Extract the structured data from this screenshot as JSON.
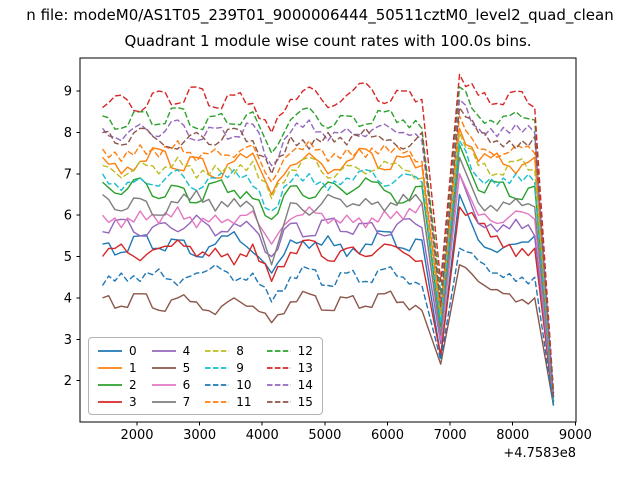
{
  "figure": {
    "suptitle": "n file: modeM0/AS1T05_239T01_9000006444_50511cztM0_level2_quad_clean",
    "title": "Quadrant 1 module wise count rates with 100.0s bins.",
    "offset_text": "+4.7583e8",
    "background": "#ffffff"
  },
  "chart_data": {
    "type": "line",
    "title": "Quadrant 1 module wise count rates with 100.0s bins.",
    "suptitle_visible": "n file: modeM0/AS1T05_239T01_9000006444_50511cztM0_level2_quad_clean",
    "xlabel": "",
    "ylabel": "",
    "x_offset_label": "+4.7583e8",
    "xlim": [
      1090,
      9010
    ],
    "ylim": [
      1.0,
      9.8
    ],
    "x_ticks": [
      2000,
      3000,
      4000,
      5000,
      6000,
      7000,
      8000,
      9000
    ],
    "y_ticks": [
      2,
      3,
      4,
      5,
      6,
      7,
      8,
      9
    ],
    "grid": false,
    "legend": {
      "position": "lower left",
      "ncol": 4
    },
    "notes": "16 CZT module count-rate light curves; deep dip near x=6850, spike near x=7150, all series crash to ~1.5 at x=8650; x values are seconds with offset +4.7583e8",
    "x": [
      1450,
      1750,
      2050,
      2350,
      2650,
      2950,
      3250,
      3550,
      3850,
      4150,
      4450,
      4750,
      5050,
      5350,
      5650,
      5950,
      6250,
      6550,
      6850,
      7150,
      7450,
      7750,
      8050,
      8350,
      8650
    ],
    "series": [
      {
        "name": "0",
        "color": "#1f77b4",
        "dash": "solid",
        "values": [
          5.3,
          5.1,
          5.5,
          5.2,
          5.4,
          5.0,
          5.3,
          5.6,
          5.1,
          4.6,
          5.4,
          5.2,
          5.5,
          5.0,
          5.3,
          5.6,
          5.2,
          5.4,
          2.6,
          6.5,
          5.4,
          5.1,
          5.3,
          5.5,
          1.5
        ]
      },
      {
        "name": "1",
        "color": "#ff7f0e",
        "dash": "solid",
        "values": [
          7.4,
          7.0,
          7.3,
          7.6,
          7.1,
          7.4,
          6.9,
          7.3,
          7.5,
          6.5,
          7.2,
          7.5,
          7.0,
          7.3,
          7.6,
          7.1,
          7.4,
          7.2,
          3.6,
          8.1,
          7.3,
          7.5,
          7.0,
          7.4,
          1.6
        ]
      },
      {
        "name": "2",
        "color": "#2ca02c",
        "dash": "solid",
        "values": [
          6.8,
          6.5,
          6.9,
          6.4,
          6.7,
          6.3,
          6.8,
          6.6,
          6.4,
          5.9,
          6.7,
          6.4,
          6.8,
          6.5,
          6.9,
          6.6,
          6.3,
          6.7,
          3.3,
          7.7,
          6.6,
          6.8,
          6.4,
          6.7,
          1.5
        ]
      },
      {
        "name": "3",
        "color": "#d62728",
        "dash": "solid",
        "values": [
          5.0,
          5.3,
          4.9,
          5.2,
          5.4,
          5.0,
          5.2,
          4.8,
          5.3,
          4.4,
          5.1,
          5.4,
          4.9,
          5.2,
          5.0,
          5.3,
          5.1,
          4.9,
          2.6,
          6.2,
          5.8,
          5.5,
          5.0,
          5.2,
          1.4
        ]
      },
      {
        "name": "4",
        "color": "#9467bd",
        "dash": "solid",
        "values": [
          5.6,
          5.9,
          5.5,
          5.8,
          5.6,
          6.0,
          5.5,
          5.8,
          5.7,
          5.0,
          5.8,
          5.5,
          5.9,
          5.6,
          5.8,
          5.5,
          5.9,
          5.7,
          2.9,
          7.0,
          5.8,
          5.6,
          5.9,
          5.5,
          1.5
        ]
      },
      {
        "name": "5",
        "color": "#8c564b",
        "dash": "solid",
        "values": [
          4.0,
          3.8,
          4.1,
          3.7,
          4.0,
          3.9,
          3.6,
          4.0,
          3.8,
          3.4,
          3.9,
          4.1,
          3.7,
          4.0,
          3.8,
          4.1,
          3.9,
          3.7,
          2.4,
          4.8,
          4.4,
          4.2,
          3.9,
          4.0,
          1.4
        ]
      },
      {
        "name": "6",
        "color": "#e377c2",
        "dash": "solid",
        "values": [
          6.0,
          5.7,
          6.1,
          5.8,
          6.2,
          5.7,
          6.0,
          5.8,
          6.1,
          5.3,
          5.9,
          6.2,
          5.8,
          6.0,
          5.7,
          6.1,
          5.9,
          6.3,
          3.0,
          7.0,
          6.0,
          5.8,
          6.1,
          5.9,
          1.5
        ]
      },
      {
        "name": "7",
        "color": "#7f7f7f",
        "dash": "solid",
        "values": [
          6.5,
          6.1,
          6.4,
          6.0,
          6.3,
          6.6,
          6.1,
          6.4,
          6.2,
          4.8,
          6.3,
          6.0,
          6.5,
          6.2,
          6.4,
          6.1,
          6.5,
          6.3,
          3.1,
          7.4,
          6.3,
          6.1,
          6.4,
          6.2,
          1.5
        ]
      },
      {
        "name": "8",
        "color": "#bcbd22",
        "dash": "dashed",
        "values": [
          7.2,
          6.9,
          7.3,
          7.0,
          7.4,
          6.9,
          7.2,
          7.0,
          7.3,
          6.4,
          7.1,
          7.4,
          6.9,
          7.2,
          7.0,
          7.3,
          7.1,
          6.9,
          3.5,
          8.0,
          7.2,
          7.0,
          7.3,
          7.1,
          1.6
        ]
      },
      {
        "name": "9",
        "color": "#17becf",
        "dash": "dashed",
        "values": [
          7.0,
          6.6,
          6.9,
          6.7,
          7.1,
          6.6,
          6.9,
          7.1,
          6.7,
          6.1,
          6.8,
          7.0,
          6.6,
          6.9,
          7.1,
          6.7,
          7.0,
          6.8,
          3.4,
          7.8,
          6.9,
          6.7,
          7.0,
          6.8,
          1.5
        ]
      },
      {
        "name": "10",
        "color": "#1f77b4",
        "dash": "dashed",
        "values": [
          4.3,
          4.6,
          4.4,
          4.7,
          4.3,
          4.6,
          4.8,
          4.4,
          4.6,
          3.9,
          4.5,
          4.7,
          4.3,
          4.6,
          4.4,
          4.7,
          4.5,
          4.3,
          2.5,
          5.2,
          4.9,
          4.6,
          4.4,
          4.5,
          1.4
        ]
      },
      {
        "name": "11",
        "color": "#ff7f0e",
        "dash": "dashed",
        "values": [
          7.6,
          7.3,
          7.7,
          7.4,
          7.8,
          7.3,
          7.6,
          7.4,
          7.7,
          6.8,
          7.5,
          7.8,
          7.3,
          7.6,
          7.4,
          7.7,
          7.5,
          7.3,
          3.7,
          8.4,
          7.6,
          7.4,
          7.7,
          7.5,
          1.6
        ]
      },
      {
        "name": "12",
        "color": "#2ca02c",
        "dash": "dashed",
        "values": [
          8.4,
          8.1,
          8.5,
          8.2,
          8.6,
          8.1,
          8.4,
          8.2,
          8.5,
          7.5,
          8.3,
          8.6,
          8.1,
          8.4,
          8.2,
          8.5,
          8.3,
          8.1,
          4.1,
          9.1,
          8.4,
          8.2,
          8.5,
          8.3,
          1.7
        ]
      },
      {
        "name": "13",
        "color": "#d62728",
        "dash": "dashed",
        "values": [
          8.6,
          8.9,
          8.5,
          9.0,
          8.7,
          9.1,
          8.6,
          8.9,
          8.7,
          8.0,
          8.8,
          9.1,
          8.6,
          8.9,
          9.2,
          8.7,
          9.0,
          8.8,
          4.4,
          9.4,
          8.9,
          8.7,
          9.0,
          8.6,
          1.7
        ]
      },
      {
        "name": "14",
        "color": "#9467bd",
        "dash": "dashed",
        "values": [
          8.1,
          7.8,
          8.2,
          7.9,
          8.3,
          7.8,
          8.1,
          7.9,
          8.2,
          7.2,
          8.0,
          8.3,
          7.8,
          8.1,
          7.9,
          8.2,
          8.0,
          7.8,
          3.9,
          8.8,
          8.1,
          7.9,
          8.2,
          8.0,
          1.6
        ]
      },
      {
        "name": "15",
        "color": "#8c564b",
        "dash": "dashed",
        "values": [
          8.0,
          7.7,
          8.1,
          7.8,
          7.6,
          8.0,
          7.7,
          8.1,
          7.8,
          7.0,
          7.9,
          7.6,
          8.0,
          7.7,
          8.1,
          7.8,
          7.6,
          8.0,
          3.8,
          8.6,
          8.0,
          7.8,
          7.6,
          7.9,
          1.6
        ]
      }
    ]
  }
}
